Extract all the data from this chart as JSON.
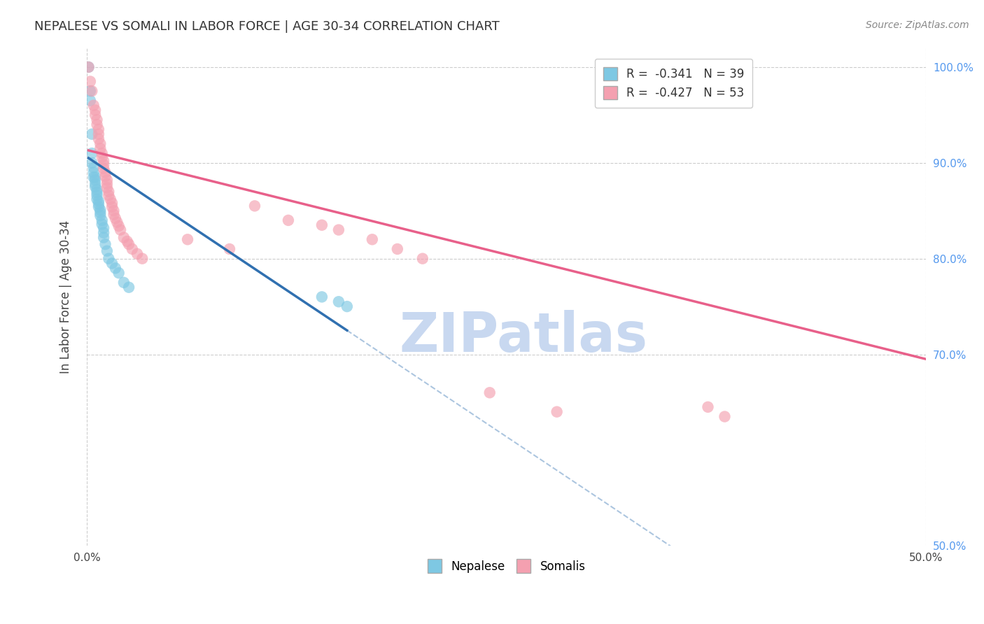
{
  "title": "NEPALESE VS SOMALI IN LABOR FORCE | AGE 30-34 CORRELATION CHART",
  "source": "Source: ZipAtlas.com",
  "ylabel_left": "In Labor Force | Age 30-34",
  "xlim": [
    0.0,
    0.5
  ],
  "ylim": [
    0.5,
    1.02
  ],
  "nepalese_R": "-0.341",
  "nepalese_N": "39",
  "somali_R": "-0.427",
  "somali_N": "53",
  "nepalese_color": "#7ec8e3",
  "somali_color": "#f4a0b0",
  "nepalese_line_color": "#3070b0",
  "somali_line_color": "#e8608a",
  "watermark": "ZIPatlas",
  "watermark_color": "#c8d8f0",
  "nepalese_line_x0": 0.001,
  "nepalese_line_y0": 0.905,
  "nepalese_line_x1": 0.155,
  "nepalese_line_y1": 0.725,
  "somali_line_x0": 0.001,
  "somali_line_y0": 0.913,
  "somali_line_x1": 0.5,
  "somali_line_y1": 0.695,
  "nepalese_x": [
    0.001,
    0.002,
    0.002,
    0.003,
    0.003,
    0.003,
    0.004,
    0.004,
    0.004,
    0.005,
    0.005,
    0.005,
    0.005,
    0.006,
    0.006,
    0.006,
    0.006,
    0.007,
    0.007,
    0.007,
    0.008,
    0.008,
    0.008,
    0.009,
    0.009,
    0.01,
    0.01,
    0.01,
    0.011,
    0.012,
    0.013,
    0.015,
    0.017,
    0.019,
    0.022,
    0.025,
    0.14,
    0.15,
    0.155
  ],
  "nepalese_y": [
    1.0,
    0.975,
    0.965,
    0.93,
    0.91,
    0.9,
    0.895,
    0.89,
    0.885,
    0.885,
    0.882,
    0.878,
    0.875,
    0.872,
    0.869,
    0.866,
    0.862,
    0.86,
    0.857,
    0.854,
    0.851,
    0.848,
    0.845,
    0.84,
    0.836,
    0.832,
    0.827,
    0.822,
    0.815,
    0.808,
    0.8,
    0.795,
    0.79,
    0.785,
    0.775,
    0.77,
    0.76,
    0.755,
    0.75
  ],
  "somali_x": [
    0.001,
    0.002,
    0.003,
    0.004,
    0.005,
    0.005,
    0.006,
    0.006,
    0.007,
    0.007,
    0.007,
    0.008,
    0.008,
    0.009,
    0.009,
    0.01,
    0.01,
    0.01,
    0.011,
    0.011,
    0.012,
    0.012,
    0.012,
    0.013,
    0.013,
    0.014,
    0.015,
    0.015,
    0.016,
    0.016,
    0.017,
    0.018,
    0.019,
    0.02,
    0.022,
    0.024,
    0.025,
    0.027,
    0.03,
    0.033,
    0.06,
    0.085,
    0.1,
    0.12,
    0.14,
    0.15,
    0.17,
    0.185,
    0.2,
    0.24,
    0.28,
    0.37,
    0.38
  ],
  "somali_y": [
    1.0,
    0.985,
    0.975,
    0.96,
    0.955,
    0.95,
    0.945,
    0.94,
    0.935,
    0.93,
    0.925,
    0.92,
    0.915,
    0.91,
    0.906,
    0.902,
    0.898,
    0.894,
    0.89,
    0.886,
    0.882,
    0.878,
    0.874,
    0.87,
    0.866,
    0.862,
    0.858,
    0.854,
    0.85,
    0.846,
    0.842,
    0.838,
    0.834,
    0.83,
    0.822,
    0.818,
    0.815,
    0.81,
    0.805,
    0.8,
    0.82,
    0.81,
    0.855,
    0.84,
    0.835,
    0.83,
    0.82,
    0.81,
    0.8,
    0.66,
    0.64,
    0.645,
    0.635
  ]
}
